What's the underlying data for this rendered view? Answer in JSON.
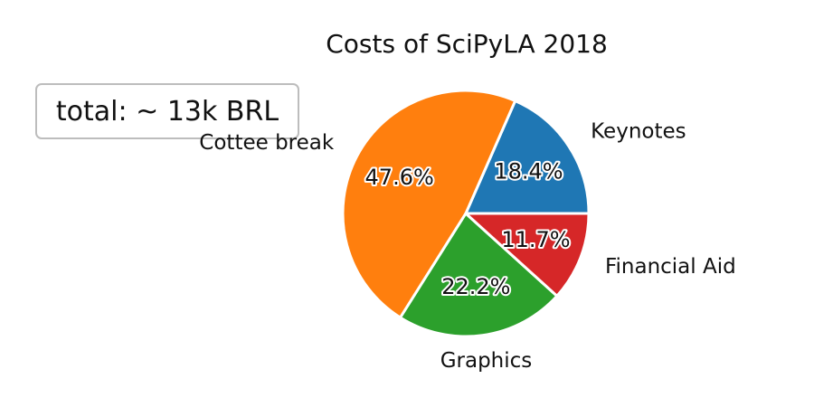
{
  "chart_data": {
    "type": "pie",
    "title": "Costs of SciPyLA 2018",
    "annotation": "total: ~ 13k BRL",
    "slices": [
      {
        "label": "Keynotes",
        "value": 18.4,
        "pct_label": "18.4%",
        "color": "#1f77b4"
      },
      {
        "label": "Cottee break",
        "value": 47.6,
        "pct_label": "47.6%",
        "color": "#ff7f0e"
      },
      {
        "label": "Graphics",
        "value": 22.2,
        "pct_label": "22.2%",
        "color": "#2ca02c"
      },
      {
        "label": "Financial Aid",
        "value": 11.7,
        "pct_label": "11.7%",
        "color": "#d62728"
      }
    ],
    "legend": "none",
    "grid": false
  }
}
